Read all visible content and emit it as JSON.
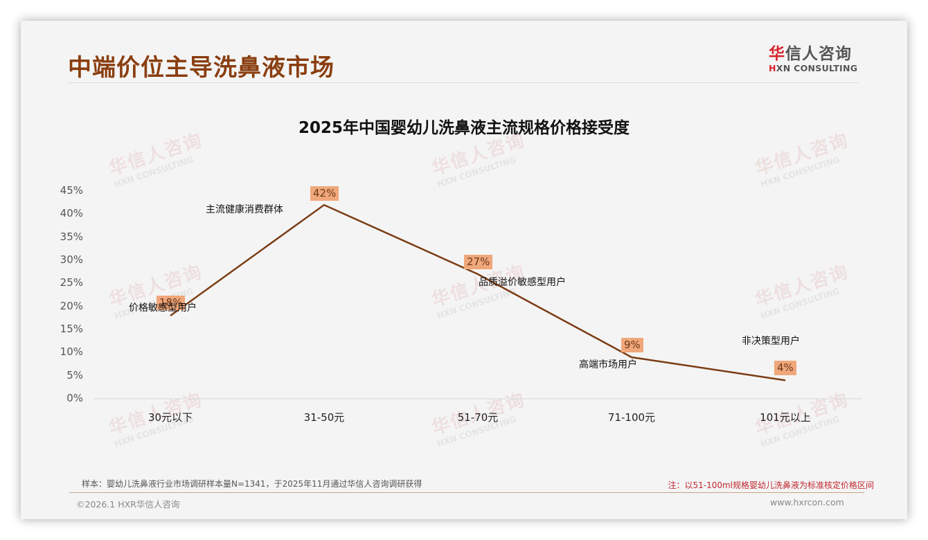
{
  "page": {
    "title": "中端价位主导洗鼻液市场",
    "logo": {
      "cn_first": "华",
      "cn_rest": "信人咨询",
      "en_first": "H",
      "en_rest": "XN CONSULTING"
    },
    "watermark": {
      "cn": "华信人咨询",
      "en": "HXN CONSULTING"
    }
  },
  "chart_data": {
    "type": "line",
    "title": "2025年中国婴幼儿洗鼻液主流规格价格接受度",
    "xlabel": "",
    "ylabel": "",
    "categories": [
      "30元以下",
      "31-50元",
      "51-70元",
      "71-100元",
      "101元以上"
    ],
    "values": [
      18,
      42,
      27,
      9,
      4
    ],
    "data_labels": [
      "18%",
      "42%",
      "27%",
      "9%",
      "4%"
    ],
    "annotations": [
      "价格敏感型用户",
      "主流健康消费群体",
      "品质溢价敏感型用户",
      "高端市场用户",
      "非决策型用户"
    ],
    "yticks": [
      "0%",
      "5%",
      "10%",
      "15%",
      "20%",
      "25%",
      "30%",
      "35%",
      "40%",
      "45%"
    ],
    "ylim": [
      0,
      45
    ],
    "grid": false,
    "legend": "none",
    "line_color": "#7b3c14",
    "label_bg_color": "#f0a77a"
  },
  "footer": {
    "sample": "样本：婴幼儿洗鼻液行业市场调研样本量N=1341，于2025年11月通过华信人咨询调研获得",
    "note": "注：以51-100ml规格婴幼儿洗鼻液为标准核定价格区间",
    "copyright": "©2026.1 HXR华信人咨询",
    "website": "www.hxrcon.com"
  }
}
